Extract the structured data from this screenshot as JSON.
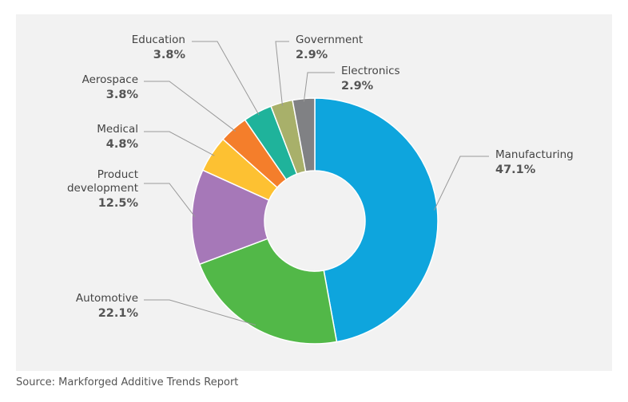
{
  "chart_data": {
    "type": "donut",
    "categories": [
      "Manufacturing",
      "Automotive",
      "Product development",
      "Medical",
      "Aerospace",
      "Education",
      "Government",
      "Electronics"
    ],
    "values": [
      47.1,
      22.1,
      12.5,
      4.8,
      3.8,
      3.8,
      2.9,
      2.9
    ],
    "value_labels": [
      "47.1%",
      "22.1%",
      "12.5%",
      "4.8%",
      "3.8%",
      "3.8%",
      "2.9%",
      "2.9%"
    ],
    "colors": [
      "#0ea5dd",
      "#52b848",
      "#a678b8",
      "#fdc132",
      "#f47e2b",
      "#1fb39b",
      "#a8b06a",
      "#808184"
    ],
    "source": "Source: Markforged Additive Trends Report"
  }
}
